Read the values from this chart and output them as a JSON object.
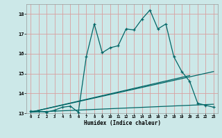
{
  "title": "",
  "xlabel": "Humidex (Indice chaleur)",
  "bg_color": "#cce8e8",
  "line_color": "#006666",
  "grid_color_major": "#d8a0a0",
  "grid_color_minor": "#ddc8c8",
  "xlim": [
    -0.5,
    23.5
  ],
  "ylim": [
    13,
    18.5
  ],
  "xticks": [
    0,
    1,
    2,
    3,
    4,
    5,
    6,
    7,
    8,
    9,
    10,
    11,
    12,
    13,
    14,
    15,
    16,
    17,
    18,
    19,
    20,
    21,
    22,
    23
  ],
  "yticks": [
    13,
    14,
    15,
    16,
    17,
    18
  ],
  "line1_x": [
    0,
    1,
    2,
    3,
    4,
    5,
    6,
    7,
    8,
    9,
    10,
    11,
    12,
    13,
    14,
    15,
    16,
    17,
    18,
    19,
    20,
    21,
    22,
    23
  ],
  "line1_y": [
    13.1,
    13.1,
    13.05,
    13.15,
    13.3,
    13.35,
    13.05,
    15.85,
    17.5,
    16.05,
    16.3,
    16.4,
    17.25,
    17.2,
    17.75,
    18.2,
    17.25,
    17.5,
    15.85,
    15.1,
    14.6,
    13.5,
    13.4,
    13.3
  ],
  "line2_x": [
    0,
    23
  ],
  "line2_y": [
    13.05,
    13.45
  ],
  "line3_x": [
    0,
    23
  ],
  "line3_y": [
    13.05,
    15.1
  ],
  "line4_x": [
    0,
    20
  ],
  "line4_y": [
    13.05,
    14.9
  ]
}
